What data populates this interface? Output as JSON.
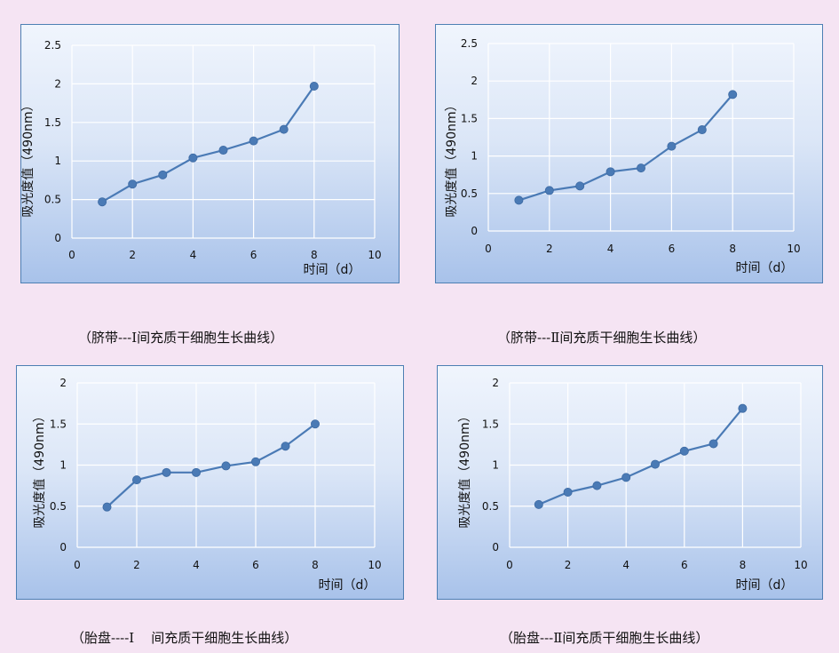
{
  "colors": {
    "page_background": "#f5e4f3",
    "panel_border": "#4d7fb3",
    "series_line": "#4a7ab5",
    "marker_fill": "#4a7ab5",
    "gridline": "#ffffff"
  },
  "chart_data": [
    {
      "type": "line",
      "caption": "（脐带---Ⅰ间充质干细胞生长曲线）",
      "xlabel": "时间（d）",
      "ylabel": "吸光度值（490nm）",
      "xlim": [
        0,
        10
      ],
      "ylim": [
        0,
        2.5
      ],
      "xticks": [
        "0",
        "2",
        "4",
        "6",
        "8",
        "10"
      ],
      "yticks": [
        "0",
        "0.5",
        "1",
        "1.5",
        "2",
        "2.5"
      ],
      "grid": true,
      "series": [
        {
          "x": [
            1,
            2,
            3,
            4,
            5,
            6,
            7,
            8
          ],
          "values": [
            0.47,
            0.7,
            0.82,
            1.04,
            1.14,
            1.26,
            1.41,
            1.97
          ]
        }
      ]
    },
    {
      "type": "line",
      "caption": "（脐带---Ⅱ间充质干细胞生长曲线）",
      "xlabel": "时间（d）",
      "ylabel": "吸光度值（490nm）",
      "xlim": [
        0,
        10
      ],
      "ylim": [
        0,
        2.5
      ],
      "xticks": [
        "0",
        "2",
        "4",
        "6",
        "8",
        "10"
      ],
      "yticks": [
        "0",
        "0.5",
        "1",
        "1.5",
        "2",
        "2.5"
      ],
      "grid": true,
      "series": [
        {
          "x": [
            1,
            2,
            3,
            4,
            5,
            6,
            7,
            8
          ],
          "values": [
            0.41,
            0.54,
            0.6,
            0.79,
            0.84,
            1.13,
            1.35,
            1.82
          ]
        }
      ]
    },
    {
      "type": "line",
      "caption": "（胎盘----Ⅰ    间充质干细胞生长曲线）",
      "xlabel": "时间（d）",
      "ylabel": "吸光度值（490nm）",
      "xlim": [
        0,
        10
      ],
      "ylim": [
        0,
        2
      ],
      "xticks": [
        "0",
        "2",
        "4",
        "6",
        "8",
        "10"
      ],
      "yticks": [
        "0",
        "0.5",
        "1",
        "1.5",
        "2"
      ],
      "grid": true,
      "series": [
        {
          "x": [
            1,
            2,
            3,
            4,
            5,
            6,
            7,
            8
          ],
          "values": [
            0.49,
            0.82,
            0.91,
            0.91,
            0.99,
            1.04,
            1.23,
            1.5
          ]
        }
      ]
    },
    {
      "type": "line",
      "caption": "（胎盘---Ⅱ间充质干细胞生长曲线）",
      "xlabel": "时间（d）",
      "ylabel": "吸光度值（490nm）",
      "xlim": [
        0,
        10
      ],
      "ylim": [
        0,
        2
      ],
      "xticks": [
        "0",
        "2",
        "4",
        "6",
        "8",
        "10"
      ],
      "yticks": [
        "0",
        "0.5",
        "1",
        "1.5",
        "2"
      ],
      "grid": true,
      "series": [
        {
          "x": [
            1,
            2,
            3,
            4,
            5,
            6,
            7,
            8
          ],
          "values": [
            0.52,
            0.67,
            0.75,
            0.85,
            1.01,
            1.17,
            1.26,
            1.69
          ]
        }
      ]
    }
  ]
}
